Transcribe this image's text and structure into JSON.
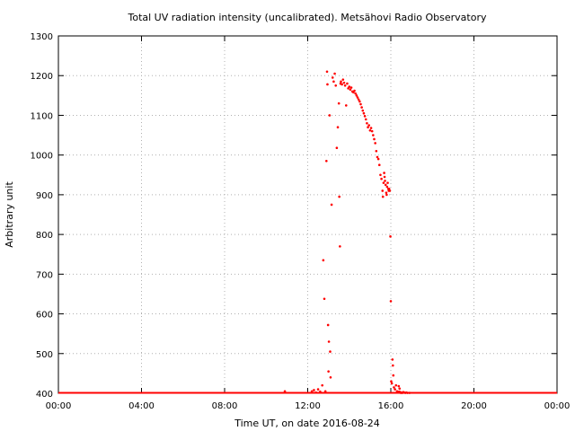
{
  "chart_data": {
    "type": "scatter",
    "title": "Total UV radiation intensity (uncalibrated). Metsähovi Radio Observatory",
    "xlabel": "Time UT, on date 2016-08-24",
    "ylabel": "Arbitrary unit",
    "xlim": [
      0,
      24
    ],
    "ylim": [
      400,
      1300
    ],
    "x_ticks": [
      0,
      4,
      8,
      12,
      16,
      20,
      24
    ],
    "x_tick_labels": [
      "00:00",
      "04:00",
      "08:00",
      "12:00",
      "16:00",
      "20:00",
      "00:00"
    ],
    "y_ticks": [
      400,
      500,
      600,
      700,
      800,
      900,
      1000,
      1100,
      1200,
      1300
    ],
    "y_tick_labels": [
      "400",
      "500",
      "600",
      "700",
      "800",
      "900",
      "1000",
      "1100",
      "1200",
      "1300"
    ],
    "grid": true,
    "marker_color": "#ff0000",
    "series": [
      {
        "x": [
          10.9,
          12.2,
          12.3,
          12.4,
          12.5,
          12.6,
          12.7,
          12.75,
          12.8,
          12.85,
          12.9,
          12.93,
          12.95,
          12.98,
          13.0,
          13.02,
          13.05,
          13.08,
          13.1,
          13.15,
          13.2,
          13.25,
          13.3,
          13.35,
          13.4,
          13.45,
          13.5,
          13.52,
          13.55,
          13.58,
          13.6,
          13.65,
          13.7,
          13.75,
          13.8,
          13.85,
          13.9,
          13.95,
          14.0,
          14.05,
          14.1,
          14.15,
          14.2,
          14.25,
          14.3,
          14.35,
          14.4,
          14.45,
          14.5,
          14.55,
          14.6,
          14.65,
          14.7,
          14.75,
          14.8,
          14.85,
          14.9,
          14.95,
          15.0,
          15.05,
          15.1,
          15.15,
          15.2,
          15.25,
          15.3,
          15.35,
          15.4,
          15.45,
          15.5,
          15.55,
          15.6,
          15.62,
          15.65,
          15.68,
          15.7,
          15.72,
          15.75,
          15.78,
          15.8,
          15.82,
          15.85,
          15.88,
          15.9,
          15.92,
          15.95,
          15.98,
          16.0,
          16.02,
          16.05,
          16.08,
          16.1,
          16.12,
          16.15,
          16.2,
          16.25,
          16.3,
          16.35,
          16.38,
          16.4,
          16.42,
          16.45,
          16.48,
          16.5,
          16.55,
          16.6,
          16.65,
          16.7,
          16.75,
          16.8,
          16.9
        ],
        "y": [
          405,
          405,
          408,
          402,
          410,
          404,
          420,
          735,
          638,
          405,
          985,
          1210,
          1178,
          572,
          455,
          530,
          1100,
          505,
          440,
          875,
          1195,
          1185,
          1205,
          1175,
          1018,
          1070,
          1130,
          895,
          770,
          1180,
          1185,
          1178,
          1190,
          1182,
          1175,
          1125,
          1180,
          1168,
          1172,
          1165,
          1170,
          1160,
          1158,
          1162,
          1155,
          1150,
          1145,
          1140,
          1135,
          1128,
          1120,
          1112,
          1105,
          1098,
          1090,
          1080,
          1070,
          1075,
          1062,
          1068,
          1060,
          1050,
          1040,
          1030,
          1010,
          995,
          990,
          975,
          950,
          940,
          910,
          895,
          930,
          955,
          945,
          935,
          925,
          905,
          900,
          920,
          930,
          915,
          910,
          915,
          910,
          795,
          632,
          430,
          425,
          485,
          470,
          445,
          415,
          410,
          420,
          405,
          402,
          418,
          404,
          412,
          403,
          401,
          402,
          401,
          403,
          402,
          401,
          402,
          401,
          401
        ]
      }
    ]
  }
}
